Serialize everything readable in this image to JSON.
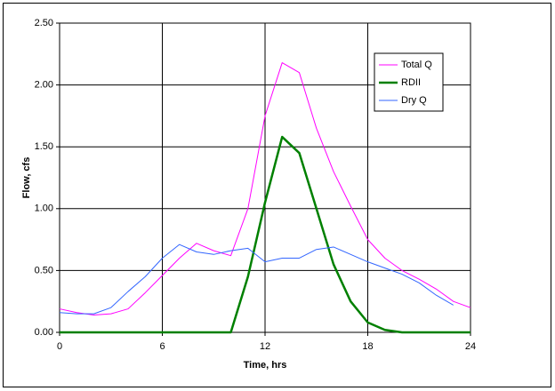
{
  "chart_data": {
    "type": "line",
    "x_label": "Time, hrs",
    "y_label": "Flow, cfs",
    "x": [
      0,
      1,
      2,
      3,
      4,
      5,
      6,
      7,
      8,
      9,
      10,
      11,
      12,
      13,
      14,
      15,
      16,
      17,
      18,
      19,
      20,
      21,
      22,
      23,
      24
    ],
    "series": [
      {
        "name": "Total Q",
        "color": "#ff00ff",
        "values": [
          0.19,
          0.16,
          0.14,
          0.15,
          0.19,
          0.32,
          0.46,
          0.6,
          0.72,
          0.66,
          0.62,
          1.0,
          1.75,
          2.18,
          2.1,
          1.65,
          1.3,
          1.02,
          0.75,
          0.6,
          0.5,
          0.43,
          0.35,
          0.25,
          0.2
        ]
      },
      {
        "name": "RDII",
        "color": "#008000",
        "values": [
          0,
          0,
          0,
          0,
          0,
          0,
          0,
          0,
          0,
          0,
          0,
          0.45,
          1.05,
          1.58,
          1.45,
          1.0,
          0.55,
          0.25,
          0.08,
          0.02,
          0,
          0,
          0,
          0,
          0
        ]
      },
      {
        "name": "Dry Q",
        "color": "#3366ff",
        "values": [
          0.16,
          0.15,
          0.15,
          0.2,
          0.33,
          0.45,
          0.6,
          0.71,
          0.65,
          0.63,
          0.66,
          0.68,
          0.57,
          0.6,
          0.6,
          0.67,
          0.69,
          0.63,
          0.57,
          0.52,
          0.47,
          0.4,
          0.3,
          0.22,
          null
        ]
      }
    ],
    "xlim": [
      0,
      24
    ],
    "xticks": [
      0,
      6,
      12,
      18,
      24
    ],
    "ylim": [
      0,
      2.5
    ],
    "yticks": [
      {
        "value": 0,
        "label": "0.00"
      },
      {
        "value": 0.5,
        "label": "0.50"
      },
      {
        "value": 1,
        "label": "1.00"
      },
      {
        "value": 1.5,
        "label": "1.50"
      },
      {
        "value": 2,
        "label": "2.00"
      },
      {
        "value": 2.5,
        "label": "2.50"
      }
    ],
    "grid": true,
    "legend": "upper right"
  }
}
